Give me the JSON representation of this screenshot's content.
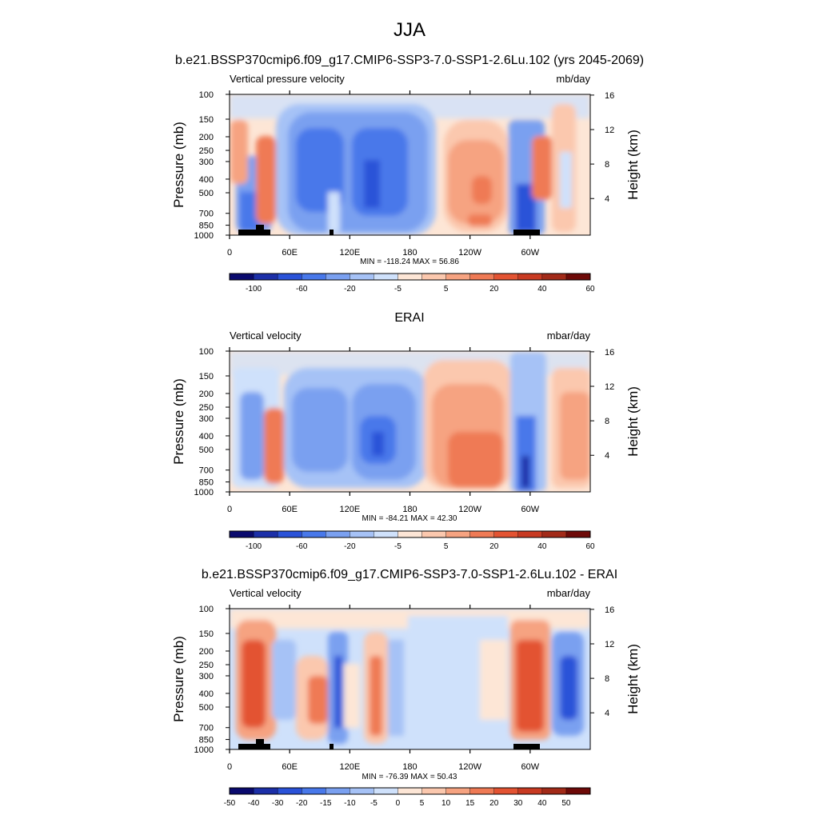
{
  "header": {
    "season": "JJA",
    "case_title": "b.e21.BSSP370cmip6.f09_g17.CMIP6-SSP3-7.0-SSP1-2.6Lu.102 (yrs 2045-2069)"
  },
  "colors": {
    "frame": "#000000",
    "land": "#000000"
  },
  "chart_data": [
    {
      "type": "heatmap",
      "panel_title": "",
      "left_label": "Vertical pressure velocity",
      "right_label": "mb/day",
      "ylabel": "Pressure (mb)",
      "ylabel_right": "Height (km)",
      "x_ticks": [
        "0",
        "60E",
        "120E",
        "180",
        "120W",
        "60W"
      ],
      "y_ticks": [
        "100",
        "150",
        "200",
        "250",
        "300",
        "400",
        "500",
        "700",
        "850",
        "1000"
      ],
      "y_ticks_right": [
        "16",
        "12",
        "8",
        "4"
      ],
      "stats": "MIN = -118.24  MAX =  56.86",
      "colorbar_labels": [
        "-100",
        "-60",
        "-20",
        "-5",
        "5",
        "20",
        "40",
        "60"
      ],
      "min": -118.24,
      "max": 56.86
    },
    {
      "type": "heatmap",
      "panel_title": "ERAI",
      "left_label": "Vertical velocity",
      "right_label": "mbar/day",
      "ylabel": "Pressure (mb)",
      "ylabel_right": "Height (km)",
      "x_ticks": [
        "0",
        "60E",
        "120E",
        "180",
        "120W",
        "60W"
      ],
      "y_ticks": [
        "100",
        "150",
        "200",
        "250",
        "300",
        "400",
        "500",
        "700",
        "850",
        "1000"
      ],
      "y_ticks_right": [
        "16",
        "12",
        "8",
        "4"
      ],
      "stats": "MIN = -84.21  MAX = 42.30",
      "colorbar_labels": [
        "-100",
        "-60",
        "-20",
        "-5",
        "5",
        "20",
        "40",
        "60"
      ],
      "min": -84.21,
      "max": 42.3
    },
    {
      "type": "heatmap",
      "panel_title": "b.e21.BSSP370cmip6.f09_g17.CMIP6-SSP3-7.0-SSP1-2.6Lu.102 - ERAI",
      "left_label": "Vertical velocity",
      "right_label": "mbar/day",
      "ylabel": "Pressure (mb)",
      "ylabel_right": "Height (km)",
      "x_ticks": [
        "0",
        "60E",
        "120E",
        "180",
        "120W",
        "60W"
      ],
      "y_ticks": [
        "100",
        "150",
        "200",
        "250",
        "300",
        "400",
        "500",
        "700",
        "850",
        "1000"
      ],
      "y_ticks_right": [
        "16",
        "12",
        "8",
        "4"
      ],
      "stats": "MIN = -76.39  MAX =  50.43",
      "colorbar_labels": [
        "-50",
        "-40",
        "-30",
        "-20",
        "-15",
        "-10",
        "-5",
        "0",
        "5",
        "10",
        "15",
        "20",
        "30",
        "40",
        "50"
      ],
      "min": -76.39,
      "max": 50.43
    }
  ],
  "colormap": [
    "#0a0a6e",
    "#1c2fa8",
    "#2a52d8",
    "#4878ea",
    "#7aa0f0",
    "#a6c2f6",
    "#cfe1fb",
    "#fde6d6",
    "#fbc8ae",
    "#f6a381",
    "#ef7a55",
    "#e35332",
    "#c83a22",
    "#a22a18",
    "#6e0a08"
  ]
}
